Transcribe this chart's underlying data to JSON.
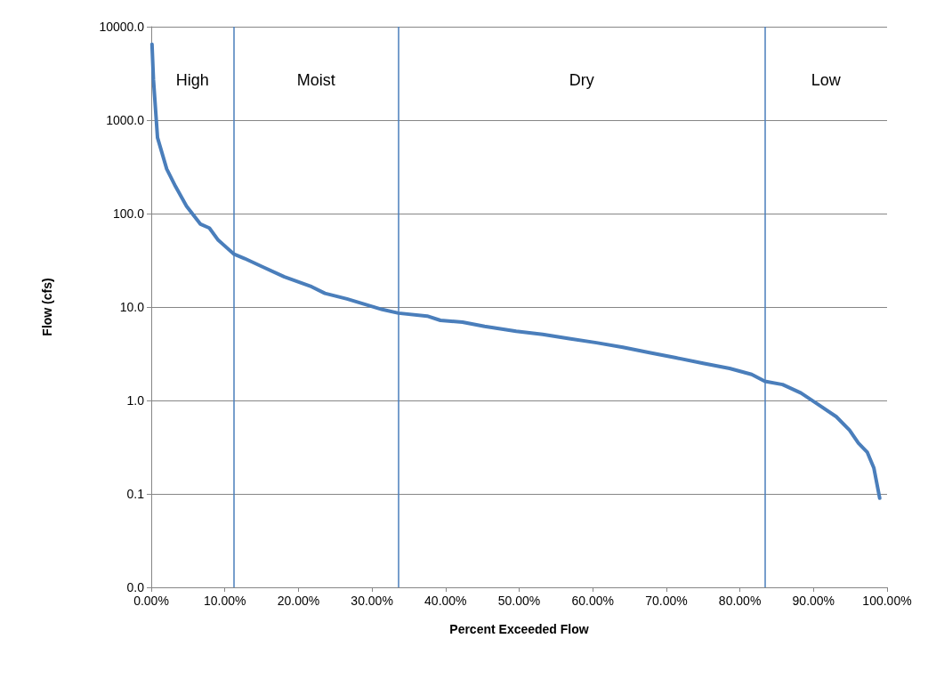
{
  "chart_data": {
    "type": "line",
    "xlabel": "Percent Exceeded Flow",
    "ylabel": "Flow (cfs)",
    "log": "y",
    "grid": "y",
    "marker": "none",
    "line_style": "solid",
    "xlim": [
      0,
      100
    ],
    "xticks": [
      {
        "value": 0,
        "label": "0.00%"
      },
      {
        "value": 10,
        "label": "10.00%"
      },
      {
        "value": 20,
        "label": "20.00%"
      },
      {
        "value": 30,
        "label": "30.00%"
      },
      {
        "value": 40,
        "label": "40.00%"
      },
      {
        "value": 50,
        "label": "50.00%"
      },
      {
        "value": 60,
        "label": "60.00%"
      },
      {
        "value": 70,
        "label": "70.00%"
      },
      {
        "value": 80,
        "label": "80.00%"
      },
      {
        "value": 90,
        "label": "90.00%"
      },
      {
        "value": 100,
        "label": "100.00%"
      }
    ],
    "ylim": [
      0.01,
      10000
    ],
    "yticks": [
      {
        "value": 0.01,
        "label": "0.0"
      },
      {
        "value": 0.1,
        "label": "0.1"
      },
      {
        "value": 1,
        "label": "1.0"
      },
      {
        "value": 10,
        "label": "10.0"
      },
      {
        "value": 100,
        "label": "100.0"
      },
      {
        "value": 1000,
        "label": "1000.0"
      },
      {
        "value": 10000,
        "label": "10000.0"
      }
    ],
    "x": [
      0.1,
      0.3,
      0.85,
      2.1,
      3.3,
      4.8,
      6.7,
      7.9,
      9.1,
      11.2,
      12.7,
      15.1,
      18.1,
      21.8,
      23.6,
      26.6,
      29,
      31.4,
      33.6,
      37.5,
      39.3,
      42.3,
      45.3,
      49.6,
      53.2,
      56.8,
      60.5,
      64.1,
      67.7,
      71.3,
      75,
      78.6,
      81.6,
      83.4,
      85.8,
      88.3,
      90.7,
      93.1,
      94.9,
      96.1,
      97.3,
      98.2,
      99
    ],
    "series": [
      {
        "color": "#4a7ebb",
        "values": [
          6500,
          2700,
          650,
          300,
          195,
          120,
          77,
          70,
          52,
          37,
          33,
          27,
          21,
          16.5,
          14,
          12.2,
          10.7,
          9.4,
          8.6,
          8,
          7.2,
          6.9,
          6.2,
          5.5,
          5.1,
          4.6,
          4.15,
          3.7,
          3.25,
          2.86,
          2.5,
          2.2,
          1.9,
          1.6,
          1.48,
          1.2,
          0.9,
          0.67,
          0.48,
          0.35,
          0.28,
          0.19,
          0.09
        ]
      }
    ],
    "ref_lines": [
      {
        "axis": "x",
        "value": 11.2,
        "color": "#4a7ebb"
      },
      {
        "axis": "x",
        "value": 33.6,
        "color": "#4a7ebb"
      },
      {
        "axis": "x",
        "value": 83.4,
        "color": "#4a7ebb"
      }
    ],
    "annotations": [
      "High",
      "Moist",
      "Dry",
      "Low"
    ]
  }
}
